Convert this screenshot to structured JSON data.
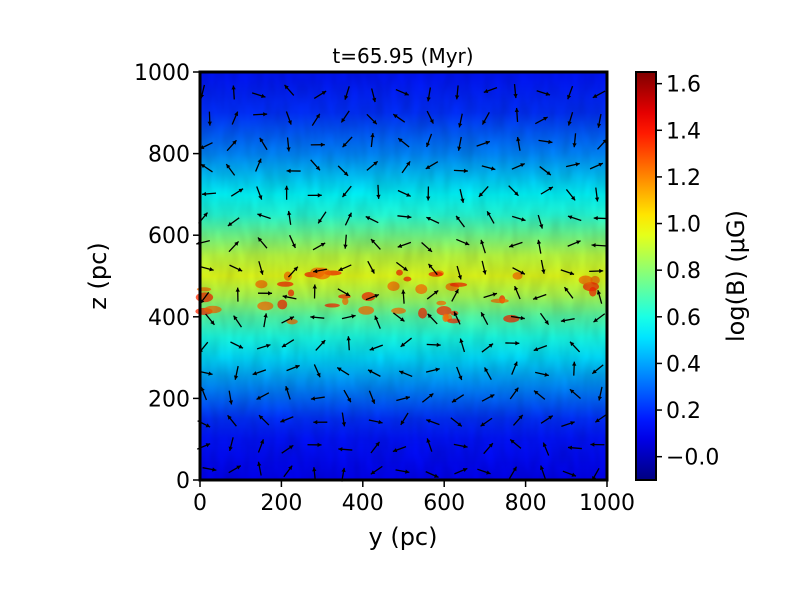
{
  "chart_data": {
    "type": "heatmap",
    "title": "t=65.95 (Myr)",
    "xlabel": "y (pc)",
    "ylabel": "z (pc)",
    "xlim": [
      0,
      1000
    ],
    "ylim": [
      0,
      1000
    ],
    "x_ticks": [
      "0",
      "200",
      "400",
      "600",
      "800",
      "1000"
    ],
    "y_ticks": [
      "0",
      "200",
      "400",
      "600",
      "800",
      "1000"
    ],
    "colorbar": {
      "label": "log(B) (μG)",
      "range": [
        -0.1,
        1.65
      ],
      "ticks": [
        "−0.0",
        "0.2",
        "0.4",
        "0.6",
        "0.8",
        "1.0",
        "1.2",
        "1.4",
        "1.6"
      ],
      "tick_values": [
        0.0,
        0.2,
        0.4,
        0.6,
        0.8,
        1.0,
        1.2,
        1.4,
        1.6
      ],
      "colormap": "jet"
    },
    "overlay": "magnetic field direction arrows (black)",
    "field_profile": {
      "z_pc": [
        0,
        100,
        150,
        200,
        250,
        300,
        350,
        400,
        450,
        500,
        550,
        600,
        650,
        700,
        750,
        800,
        900,
        1000
      ],
      "log_B": [
        0.1,
        0.15,
        0.2,
        0.3,
        0.4,
        0.5,
        0.6,
        0.7,
        0.85,
        0.95,
        0.88,
        0.75,
        0.62,
        0.55,
        0.45,
        0.35,
        0.2,
        0.15
      ]
    },
    "hot_spots_y_pc": [
      20,
      180,
      240,
      320,
      380,
      480,
      560,
      600,
      640,
      760,
      960
    ]
  }
}
